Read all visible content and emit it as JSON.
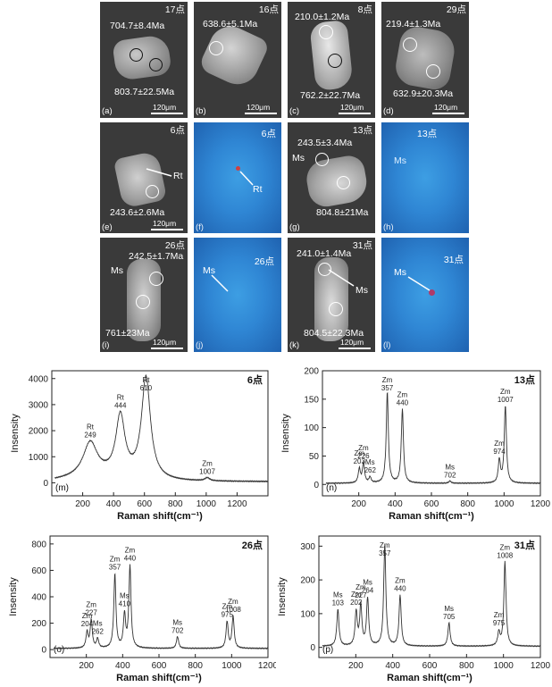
{
  "panels": [
    {
      "id": "a",
      "letter": "(a)",
      "point": "17点",
      "ages": [
        "704.7±8.4Ma",
        "803.7±22.5Ma"
      ],
      "scale": "120μm"
    },
    {
      "id": "b",
      "letter": "(b)",
      "point": "16点",
      "ages": [
        "638.6±5.1Ma"
      ],
      "scale": "120μm"
    },
    {
      "id": "c",
      "letter": "(c)",
      "point": "8点",
      "ages": [
        "210.0±1.2Ma",
        "762.2±22.7Ma"
      ],
      "scale": "120μm"
    },
    {
      "id": "d",
      "letter": "(d)",
      "point": "29点",
      "ages": [
        "219.4±1.3Ma",
        "632.9±20.3Ma"
      ],
      "scale": "120μm"
    },
    {
      "id": "e",
      "letter": "(e)",
      "point": "6点",
      "ages": [
        "243.6±2.6Ma"
      ],
      "labels": [
        "Rt"
      ],
      "scale": "120μm"
    },
    {
      "id": "f",
      "letter": "(f)",
      "point": "6点",
      "labels": [
        "Rt"
      ]
    },
    {
      "id": "g",
      "letter": "(g)",
      "point": "13点",
      "ages": [
        "243.5±3.4Ma",
        "804.8±21Ma"
      ],
      "labels": [
        "Ms"
      ],
      "scale": "120μm"
    },
    {
      "id": "h",
      "letter": "(h)",
      "point": "13点",
      "labels": [
        "Ms"
      ]
    },
    {
      "id": "i",
      "letter": "(i)",
      "point": "26点",
      "ages": [
        "242.5±1.7Ma",
        "761±23Ma"
      ],
      "labels": [
        "Ms"
      ],
      "scale": "120μm"
    },
    {
      "id": "j",
      "letter": "(j)",
      "point": "26点",
      "labels": [
        "Ms"
      ]
    },
    {
      "id": "k",
      "letter": "(k)",
      "point": "31点",
      "ages": [
        "241.0±1.4Ma",
        "804.5±22.3Ma"
      ],
      "labels": [
        "Ms"
      ],
      "scale": "120μm"
    },
    {
      "id": "l",
      "letter": "(l)",
      "point": "31点",
      "labels": [
        "Ms"
      ]
    }
  ],
  "chart_data": [
    {
      "id": "m",
      "type": "line",
      "letter": "(m)",
      "point": "6点",
      "xlabel": "Raman shift(cm⁻¹)",
      "ylabel": "Insensity",
      "xlim": [
        0,
        1400
      ],
      "ylim": [
        -500,
        4300
      ],
      "xticks": [
        200,
        400,
        600,
        800,
        1000,
        1200
      ],
      "yticks": [
        0,
        1000,
        2000,
        3000,
        4000
      ],
      "peaks": [
        {
          "x": 249,
          "y": 1300,
          "mineral": "Rt",
          "label": "249"
        },
        {
          "x": 444,
          "y": 2300,
          "mineral": "Rt",
          "label": "444"
        },
        {
          "x": 610,
          "y": 3900,
          "mineral": "Rt",
          "label": "610"
        },
        {
          "x": 1007,
          "y": 120,
          "mineral": "Zm",
          "label": "1007"
        }
      ]
    },
    {
      "id": "n",
      "type": "line",
      "letter": "(n)",
      "point": "13点",
      "xlabel": "Raman shift(cm⁻¹)",
      "ylabel": "Insensity",
      "xlim": [
        0,
        1200
      ],
      "ylim": [
        -20,
        200
      ],
      "xticks": [
        200,
        400,
        600,
        800,
        1000,
        1200
      ],
      "yticks": [
        0,
        50,
        100,
        150,
        200
      ],
      "peaks": [
        {
          "x": 203,
          "y": 25,
          "mineral": "Zm",
          "label": "203"
        },
        {
          "x": 226,
          "y": 35,
          "mineral": "Zm",
          "label": "226"
        },
        {
          "x": 262,
          "y": 10,
          "mineral": "Ms",
          "label": "262"
        },
        {
          "x": 357,
          "y": 160,
          "mineral": "Zm",
          "label": "357"
        },
        {
          "x": 440,
          "y": 130,
          "mineral": "Zm",
          "label": "440"
        },
        {
          "x": 702,
          "y": 4,
          "mineral": "Ms",
          "label": "702"
        },
        {
          "x": 974,
          "y": 40,
          "mineral": "Zm",
          "label": "974"
        },
        {
          "x": 1007,
          "y": 135,
          "mineral": "Zm",
          "label": "1007"
        }
      ]
    },
    {
      "id": "o",
      "type": "line",
      "letter": "(o)",
      "point": "26点",
      "xlabel": "Raman shift(cm⁻¹)",
      "ylabel": "Insensity",
      "xlim": [
        0,
        1200
      ],
      "ylim": [
        -60,
        860
      ],
      "xticks": [
        200,
        400,
        600,
        800,
        1000,
        1200
      ],
      "yticks": [
        0,
        200,
        400,
        600,
        800
      ],
      "peaks": [
        {
          "x": 204,
          "y": 120,
          "mineral": "Zm",
          "label": "204"
        },
        {
          "x": 227,
          "y": 210,
          "mineral": "Zm",
          "label": "227"
        },
        {
          "x": 262,
          "y": 70,
          "mineral": "Ms",
          "label": "262"
        },
        {
          "x": 357,
          "y": 560,
          "mineral": "Zm",
          "label": "357"
        },
        {
          "x": 410,
          "y": 250,
          "mineral": "Ms",
          "label": "410"
        },
        {
          "x": 440,
          "y": 620,
          "mineral": "Zm",
          "label": "440"
        },
        {
          "x": 702,
          "y": 90,
          "mineral": "Ms",
          "label": "702"
        },
        {
          "x": 975,
          "y": 200,
          "mineral": "Zm",
          "label": "975"
        },
        {
          "x": 1008,
          "y": 240,
          "mineral": "Zm",
          "label": "1008"
        }
      ]
    },
    {
      "id": "p",
      "type": "line",
      "letter": "(p)",
      "point": "31点",
      "xlabel": "Raman shift(cm⁻¹)",
      "ylabel": "Insensity",
      "xlim": [
        0,
        1200
      ],
      "ylim": [
        -30,
        330
      ],
      "xticks": [
        200,
        400,
        600,
        800,
        1000,
        1200
      ],
      "yticks": [
        0,
        100,
        200,
        300
      ],
      "peaks": [
        {
          "x": 103,
          "y": 110,
          "mineral": "Ms",
          "label": "103"
        },
        {
          "x": 202,
          "y": 100,
          "mineral": "Zm",
          "label": "202"
        },
        {
          "x": 227,
          "y": 120,
          "mineral": "Zm",
          "label": "227"
        },
        {
          "x": 264,
          "y": 140,
          "mineral": "Ms",
          "label": "264"
        },
        {
          "x": 357,
          "y": 300,
          "mineral": "Zm",
          "label": "357"
        },
        {
          "x": 440,
          "y": 150,
          "mineral": "Zm",
          "label": "440"
        },
        {
          "x": 705,
          "y": 70,
          "mineral": "Ms",
          "label": "705"
        },
        {
          "x": 975,
          "y": 40,
          "mineral": "Zm",
          "label": "975"
        },
        {
          "x": 1008,
          "y": 250,
          "mineral": "Zm",
          "label": "1008"
        }
      ]
    }
  ]
}
